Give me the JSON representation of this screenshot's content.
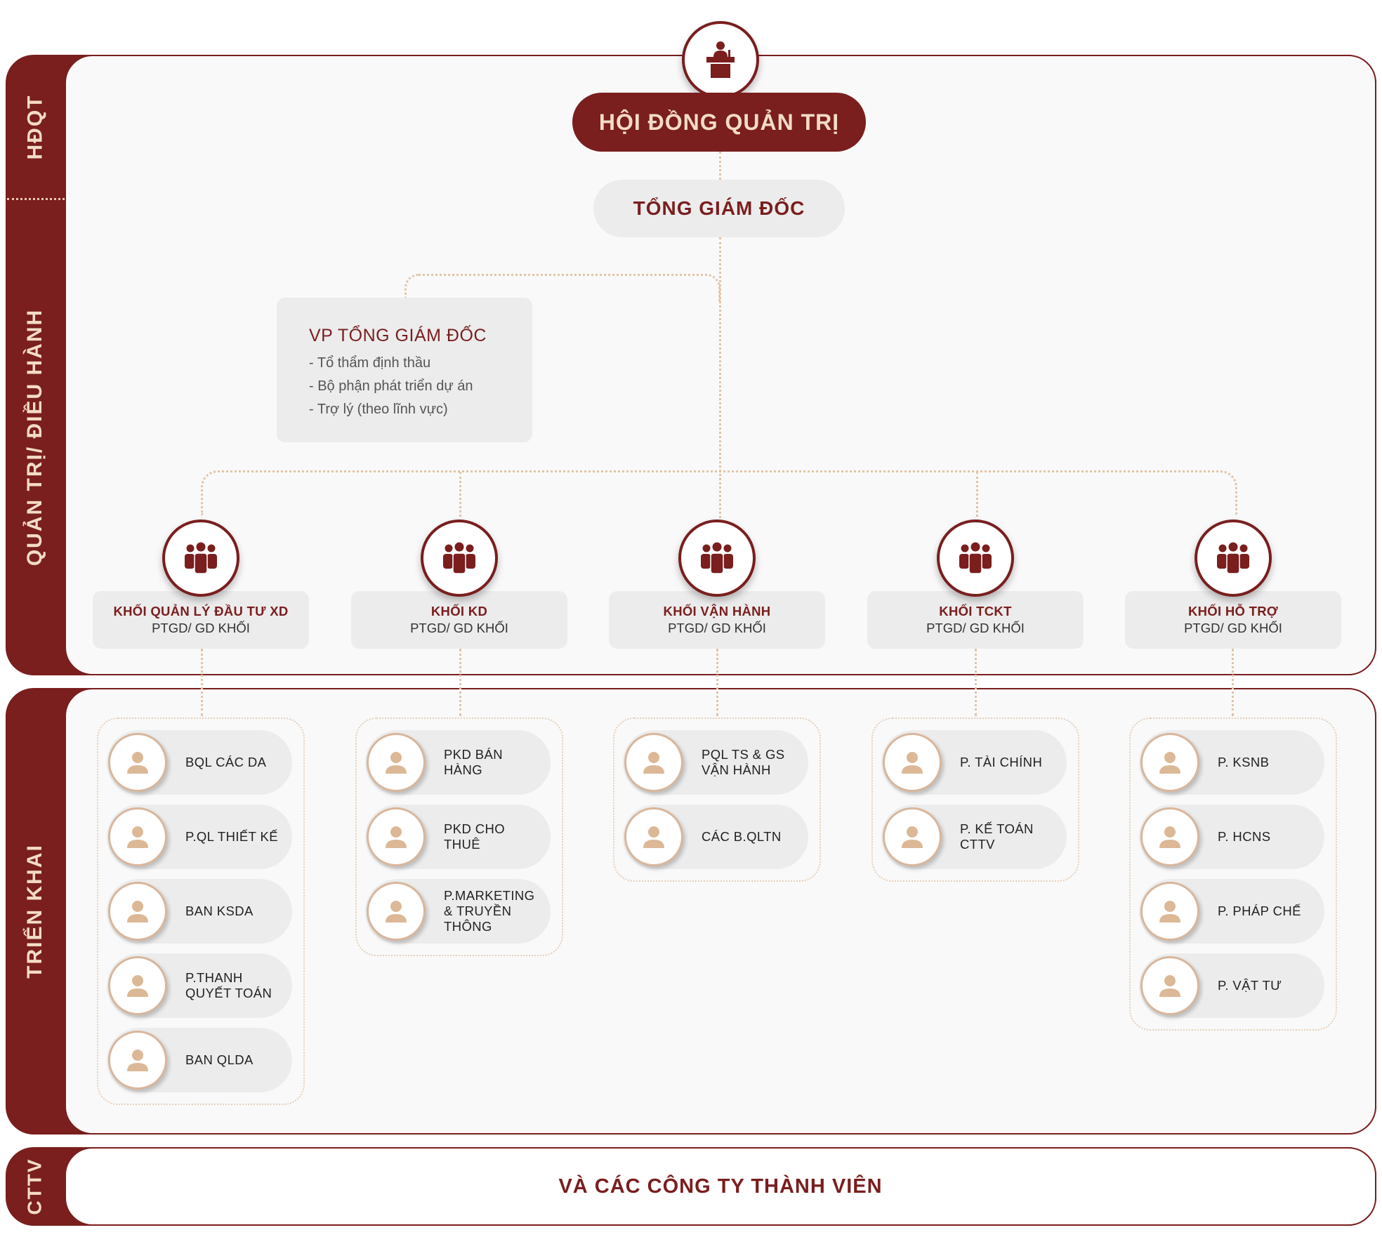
{
  "sections": {
    "hdqt": "HĐQT",
    "quan_tri": "QUẢN TRỊ/ ĐIỀU HÀNH",
    "trien_khai": "TRIỂN KHAI",
    "cttv": "CTTV"
  },
  "board": "HỘI ĐỒNG QUẢN TRỊ",
  "ceo": "TỔNG GIÁM ĐỐC",
  "vp": {
    "title": "VP TỔNG GIÁM ĐỐC",
    "items": [
      "- Tổ thẩm định thầu",
      "- Bộ phận phát triển dự án",
      "- Trợ lý (theo lĩnh vực)"
    ]
  },
  "blocks": [
    {
      "name": "KHỐI QUẢN LÝ ĐẦU TƯ XD",
      "sub": "PTGD/ GD KHỐI",
      "depts": [
        "BQL CÁC DA",
        "P.QL THIẾT KẾ",
        "BAN KSDA",
        "P.THANH\nQUYẾT TOÁN",
        "BAN QLDA"
      ]
    },
    {
      "name": "KHỐI KD",
      "sub": "PTGD/ GD KHỐI",
      "depts": [
        "PKD BÁN HÀNG",
        "PKD CHO THUÊ",
        "P.MARKETING\n& TRUYỀN THÔNG"
      ]
    },
    {
      "name": "KHỐI VẬN HÀNH",
      "sub": "PTGD/ GD KHỐI",
      "depts": [
        "PQL TS & GS\nVẬN HÀNH",
        "CÁC B.QLTN"
      ]
    },
    {
      "name": "KHỐI TCKT",
      "sub": "PTGD/ GD KHỐI",
      "depts": [
        "P. TÀI CHÍNH",
        "P. KẾ TOÁN\nCTTV"
      ]
    },
    {
      "name": "KHỐI HỖ TRỢ",
      "sub": "PTGD/ GD KHỐI",
      "depts": [
        "P. KSNB",
        "P. HCNS",
        "P. PHÁP CHẾ",
        "P. VẬT TƯ"
      ]
    }
  ],
  "cttv_text": "VÀ CÁC CÔNG TY THÀNH VIÊN",
  "icons": {
    "board": "podium-icon",
    "block": "group-icon",
    "dept": "person-icon"
  },
  "colors": {
    "primary": "#7a1e1e",
    "accent": "#f3dcc7",
    "box": "#ececec",
    "line": "#e2c4a6"
  }
}
